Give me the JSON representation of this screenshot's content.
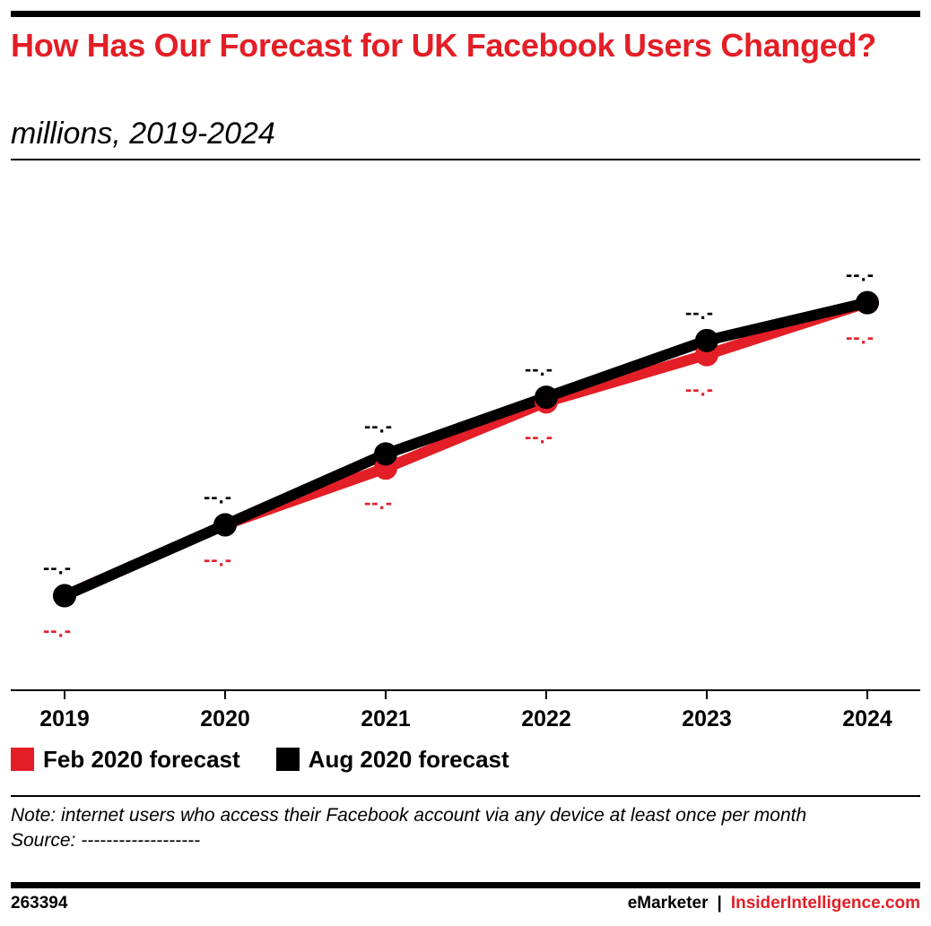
{
  "header": {
    "title": "How Has Our Forecast for UK Facebook Users Changed?",
    "subtitle": "millions, 2019-2024"
  },
  "colors": {
    "accent": "#e31e26",
    "series_feb": "#e31e26",
    "series_aug": "#000000"
  },
  "chart_data": {
    "type": "line",
    "title": "How Has Our Forecast for UK Facebook Users Changed?",
    "subtitle": "millions, 2019-2024",
    "x": [
      "2019",
      "2020",
      "2021",
      "2022",
      "2023",
      "2024"
    ],
    "series": [
      {
        "name": "Feb 2020 forecast",
        "color": "#e31e26",
        "values": [
          37.0,
          38.5,
          39.7,
          41.1,
          42.1,
          43.2
        ],
        "labels": [
          "--.-",
          "--.-",
          "--.-",
          "--.-",
          "--.-",
          "--.-"
        ]
      },
      {
        "name": "Aug 2020 forecast",
        "color": "#000000",
        "values": [
          37.0,
          38.5,
          40.0,
          41.2,
          42.4,
          43.2
        ],
        "labels": [
          "--.-",
          "--.-",
          "--.-",
          "--.-",
          "--.-",
          "--.-"
        ]
      }
    ],
    "ylim": [
      35.0,
      46.0
    ],
    "grid": false,
    "legend": "bottom-left"
  },
  "legend": [
    {
      "label": "Feb 2020 forecast",
      "color": "#e31e26"
    },
    {
      "label": "Aug 2020 forecast",
      "color": "#000000"
    }
  ],
  "note": {
    "text": "Note: internet users who access their Facebook account via any device at least once per month",
    "source": "Source: -------------------"
  },
  "footer": {
    "chart_id": "263394",
    "brand1": "eMarketer",
    "separator": "|",
    "brand2": "InsiderIntelligence.com"
  }
}
